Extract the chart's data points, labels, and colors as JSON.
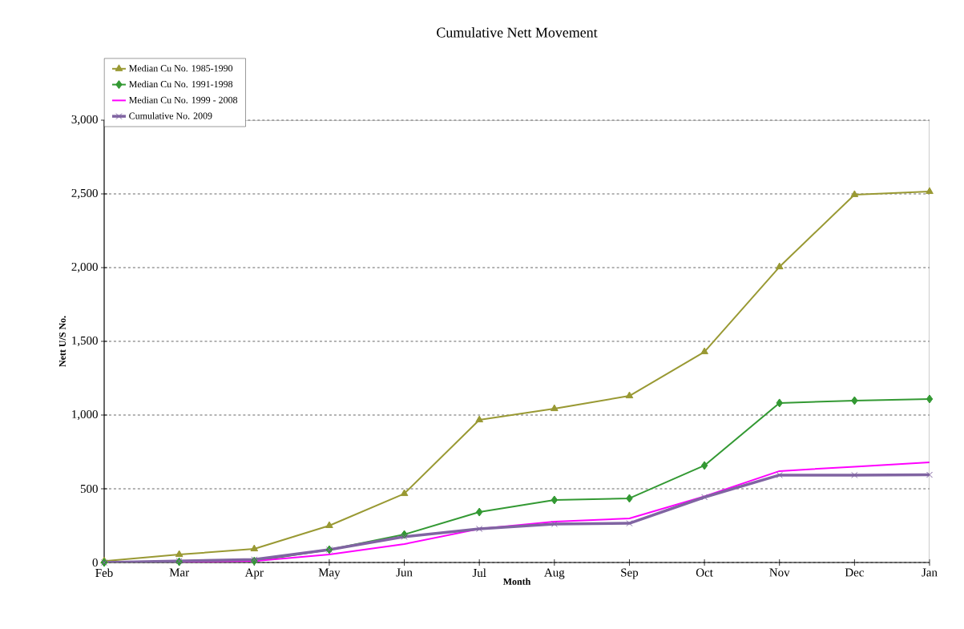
{
  "chart_data": {
    "type": "line",
    "title": "Cumulative Nett Movement",
    "xlabel": "Month",
    "ylabel": "Nett U/S No.",
    "categories": [
      "Feb",
      "Mar",
      "Apr",
      "May",
      "Jun",
      "Jul",
      "Aug",
      "Sep",
      "Oct",
      "Nov",
      "Dec",
      "Jan"
    ],
    "ylim": [
      0,
      3000
    ],
    "yticks": [
      0,
      {
        "value": 500,
        "label": "500"
      },
      {
        "value": 1000,
        "label": "1,000"
      },
      {
        "value": 1500,
        "label": "1,500"
      },
      {
        "value": 2000,
        "label": "2,000"
      },
      {
        "value": 2500,
        "label": "2,500"
      },
      {
        "value": 3000,
        "label": "3,000"
      }
    ],
    "grid": "y",
    "legend": "top left",
    "series": [
      {
        "name": "Median Cu No. 1985-1990",
        "color": "#999933",
        "marker": "triangle",
        "values": [
          10,
          54,
          92,
          250,
          467,
          967,
          1043,
          1130,
          1429,
          2005,
          2495,
          2516
        ]
      },
      {
        "name": "Median Cu No. 1991-1998",
        "color": "#339933",
        "marker": "diamond",
        "values": [
          0,
          5,
          10,
          87,
          190,
          342,
          424,
          435,
          658,
          1082,
          1098,
          1109
        ]
      },
      {
        "name": "Median Cu No. 1999 - 2008",
        "color": "#ff00ff",
        "marker": "none",
        "values": [
          0,
          5,
          10,
          54,
          125,
          228,
          277,
          299,
          448,
          620,
          650,
          679
        ]
      },
      {
        "name": "Cumulative  No. 2009",
        "color": "#8064a2",
        "marker": "cross",
        "values": [
          0,
          10,
          20,
          87,
          175,
          228,
          261,
          266,
          443,
          593,
          593,
          595
        ]
      }
    ]
  }
}
